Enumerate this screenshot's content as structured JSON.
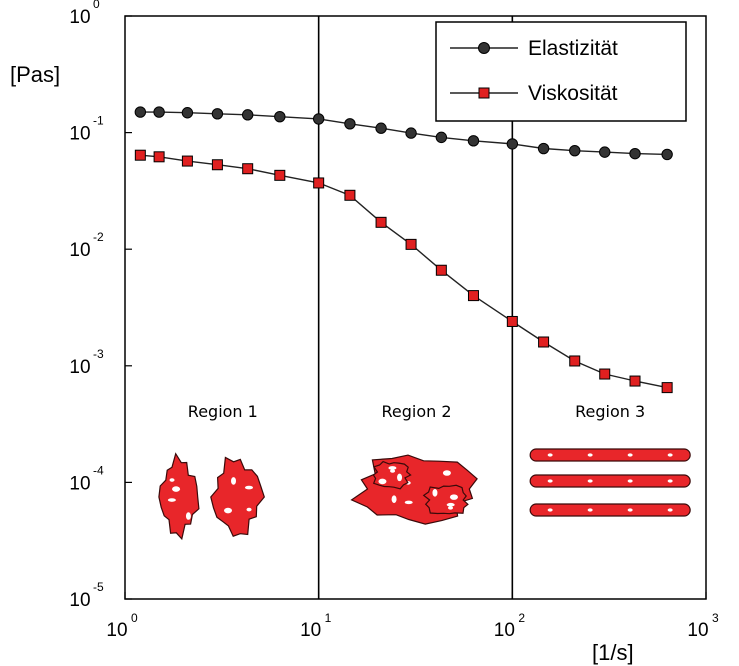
{
  "chart_data": {
    "type": "line",
    "xlabel": "[1/s]",
    "ylabel": "[Pas]",
    "x_scale": "log",
    "y_scale": "log",
    "xlim": [
      1,
      1000
    ],
    "ylim": [
      1e-05,
      1
    ],
    "grid": false,
    "legend_position": "top-right",
    "x_ticks": [
      {
        "base": "10",
        "exp": "0"
      },
      {
        "base": "10",
        "exp": "1"
      },
      {
        "base": "10",
        "exp": "2"
      },
      {
        "base": "10",
        "exp": "3"
      }
    ],
    "y_ticks": [
      {
        "base": "10",
        "exp": "0"
      },
      {
        "base": "10",
        "exp": "-1"
      },
      {
        "base": "10",
        "exp": "-2"
      },
      {
        "base": "10",
        "exp": "-3"
      },
      {
        "base": "10",
        "exp": "-4"
      },
      {
        "base": "10",
        "exp": "-5"
      }
    ],
    "vertical_lines": [
      10,
      100
    ],
    "regions": [
      {
        "label": "Region 1",
        "x_center": 3.2,
        "shape": "two-blobs"
      },
      {
        "label": "Region 2",
        "x_center": 32,
        "shape": "one-blob"
      },
      {
        "label": "Region 3",
        "x_center": 320,
        "shape": "layers"
      }
    ],
    "series": [
      {
        "name": "Elastizität",
        "marker": "circle",
        "color": "#222222",
        "x": [
          1.2,
          1.5,
          2.1,
          3.0,
          4.3,
          6.3,
          10,
          14.5,
          21,
          30,
          43,
          63,
          100,
          145,
          210,
          300,
          430,
          630
        ],
        "y": [
          0.15,
          0.15,
          0.148,
          0.145,
          0.142,
          0.137,
          0.131,
          0.119,
          0.109,
          0.099,
          0.091,
          0.085,
          0.08,
          0.073,
          0.07,
          0.068,
          0.066,
          0.065
        ]
      },
      {
        "name": "Viskosität",
        "marker": "square",
        "color": "#e02020",
        "x": [
          1.2,
          1.5,
          2.1,
          3.0,
          4.3,
          6.3,
          10,
          14.5,
          21,
          30,
          43,
          63,
          100,
          145,
          210,
          300,
          430,
          630
        ],
        "y": [
          0.064,
          0.062,
          0.057,
          0.053,
          0.049,
          0.043,
          0.037,
          0.029,
          0.017,
          0.011,
          0.0066,
          0.004,
          0.0024,
          0.0016,
          0.0011,
          0.00085,
          0.00074,
          0.00065
        ]
      }
    ]
  }
}
